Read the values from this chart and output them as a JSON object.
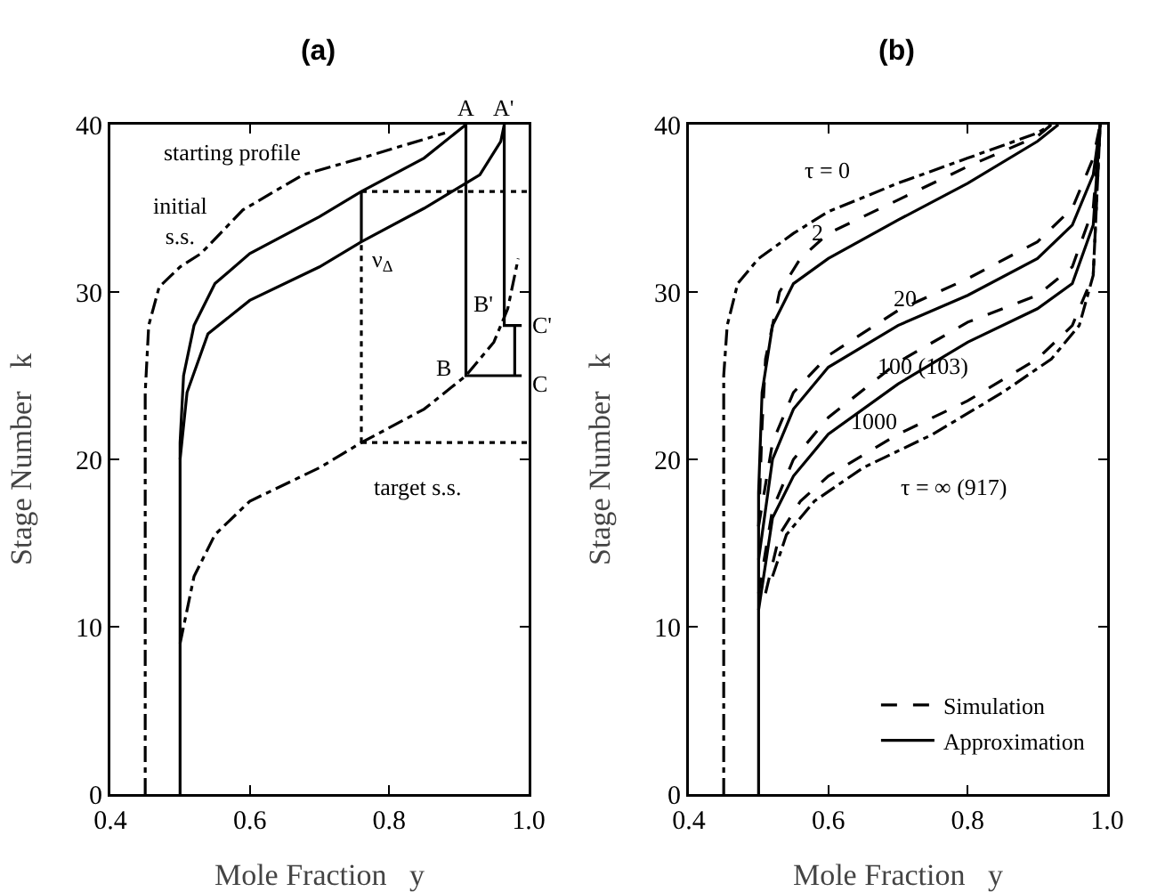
{
  "chart_data": [
    {
      "type": "line",
      "title": "(a)",
      "xlabel": "Mole Fraction   y",
      "ylabel": "Stage Number   k",
      "xlim": [
        0.4,
        1.0
      ],
      "ylim": [
        0,
        40
      ],
      "xticks": [
        0.4,
        0.6,
        0.8,
        {
          "value": 1.0,
          "label": "1.0"
        }
      ],
      "yticks": [
        0,
        10,
        20,
        30,
        40
      ],
      "grid": false,
      "legend": false,
      "series": [
        {
          "color": "#000000",
          "line_style": "dashdot",
          "x": [
            0.45,
            0.45,
            0.455,
            0.47,
            0.5,
            0.53,
            0.59,
            0.676,
            0.76,
            0.88
          ],
          "values": [
            0,
            24,
            28,
            30.3,
            31.5,
            32.3,
            34.9,
            37,
            38,
            39.5
          ]
        },
        {
          "color": "#000000",
          "line_style": "solid",
          "x": [
            0.5,
            0.5,
            0.505,
            0.52,
            0.55,
            0.6,
            0.7,
            0.76,
            0.85,
            0.91
          ],
          "values": [
            0,
            21,
            25,
            28,
            30.5,
            32.3,
            34.5,
            36,
            38,
            40
          ]
        },
        {
          "color": "#000000",
          "line_style": "solid",
          "x": [
            0.5,
            0.51,
            0.54,
            0.6,
            0.7,
            0.76,
            0.85,
            0.93,
            0.96,
            0.965
          ],
          "values": [
            20,
            24,
            27.5,
            29.5,
            31.5,
            33,
            35,
            37,
            39,
            40
          ]
        },
        {
          "color": "#000000",
          "line_style": "dashdot",
          "x": [
            0.5,
            0.52,
            0.55,
            0.6,
            0.7,
            0.76,
            0.85,
            0.91,
            0.95,
            0.97,
            0.985
          ],
          "values": [
            9,
            13,
            15.5,
            17.5,
            19.5,
            21,
            23,
            25,
            27,
            29,
            32
          ]
        },
        {
          "color": "#000000",
          "line_style": "dotted",
          "x": [
            0.76,
            1.0
          ],
          "values": [
            36,
            36
          ]
        },
        {
          "color": "#000000",
          "line_style": "dotted",
          "x": [
            0.76,
            1.0
          ],
          "values": [
            21,
            21
          ]
        },
        {
          "color": "#000000",
          "line_style": "dotted",
          "x": [
            0.76,
            0.76
          ],
          "values": [
            21,
            33
          ]
        },
        {
          "color": "#000000",
          "line_style": "solid",
          "x": [
            0.76,
            0.76
          ],
          "values": [
            36,
            33
          ]
        },
        {
          "color": "#000000",
          "line_style": "solid",
          "x": [
            0.91,
            0.91,
            0.99
          ],
          "values": [
            40,
            25,
            25
          ]
        },
        {
          "color": "#000000",
          "line_style": "solid",
          "x": [
            0.965,
            0.965,
            0.99
          ],
          "values": [
            40,
            28,
            28
          ]
        },
        {
          "color": "#000000",
          "line_style": "solid",
          "x": [
            0.98,
            0.98
          ],
          "values": [
            25,
            28
          ]
        }
      ],
      "annotations": [
        "starting profile",
        "initial\ns.s.",
        "target s.s.",
        "ν$_{Δ}$",
        "A",
        "A'",
        "B",
        "B'",
        "C",
        "C'"
      ]
    },
    {
      "type": "line",
      "title": "(b)",
      "xlabel": "Mole Fraction   y",
      "ylabel": "Stage Number   k",
      "xlim": [
        0.4,
        1.0
      ],
      "ylim": [
        0,
        40
      ],
      "xticks": [
        0.4,
        0.6,
        0.8,
        {
          "value": 1.0,
          "label": "1.0"
        }
      ],
      "yticks": [
        0,
        10,
        20,
        30,
        40
      ],
      "grid": false,
      "legend": "bottom right",
      "series": [
        {
          "color": "#000000",
          "line_style": "dashdot",
          "x": [
            0.45,
            0.45,
            0.455,
            0.47,
            0.5,
            0.55,
            0.6,
            0.7,
            0.8,
            0.9,
            0.92
          ],
          "values": [
            0,
            25,
            28,
            30.5,
            32,
            33.5,
            34.8,
            36.5,
            38,
            39.5,
            40
          ]
        },
        {
          "name": "Simulation",
          "color": "#000000",
          "line_style": "dashed",
          "x": [
            0.5,
            0.505,
            0.51,
            0.53,
            0.56,
            0.6,
            0.7,
            0.8,
            0.9,
            0.92
          ],
          "values": [
            16,
            22,
            26,
            30,
            32,
            33.5,
            35.5,
            37.5,
            39.3,
            40
          ]
        },
        {
          "name": "Approximation",
          "color": "#000000",
          "line_style": "solid",
          "x": [
            0.5,
            0.5,
            0.505,
            0.52,
            0.55,
            0.6,
            0.7,
            0.8,
            0.9,
            0.93
          ],
          "values": [
            0,
            18,
            24,
            28,
            30.5,
            32,
            34.3,
            36.5,
            39,
            40
          ]
        },
        {
          "color": "#000000",
          "line_style": "dashed",
          "x": [
            0.5,
            0.52,
            0.55,
            0.6,
            0.7,
            0.8,
            0.9,
            0.95,
            0.98,
            0.99
          ],
          "values": [
            16,
            21,
            24,
            26.2,
            28.9,
            30.8,
            33,
            35,
            38,
            40
          ]
        },
        {
          "color": "#000000",
          "line_style": "solid",
          "x": [
            0.5,
            0.52,
            0.55,
            0.6,
            0.7,
            0.8,
            0.9,
            0.95,
            0.98,
            0.99
          ],
          "values": [
            14,
            20,
            23,
            25.5,
            28,
            29.8,
            32,
            34,
            37,
            40
          ]
        },
        {
          "color": "#000000",
          "line_style": "dashed",
          "x": [
            0.5,
            0.52,
            0.55,
            0.6,
            0.7,
            0.8,
            0.9,
            0.95,
            0.98,
            0.99
          ],
          "values": [
            12,
            17,
            20,
            22.5,
            25.8,
            28.2,
            29.8,
            31.5,
            35,
            40
          ]
        },
        {
          "color": "#000000",
          "line_style": "solid",
          "x": [
            0.5,
            0.52,
            0.55,
            0.6,
            0.7,
            0.8,
            0.9,
            0.95,
            0.98,
            0.99
          ],
          "values": [
            11,
            16.5,
            19,
            21.5,
            24.5,
            27,
            29,
            30.5,
            34,
            40
          ]
        },
        {
          "color": "#000000",
          "line_style": "dashed",
          "x": [
            0.51,
            0.53,
            0.56,
            0.6,
            0.7,
            0.8,
            0.9,
            0.95,
            0.98,
            0.99
          ],
          "values": [
            12,
            15.5,
            17.5,
            19,
            21.5,
            23.5,
            26,
            28,
            31,
            40
          ]
        },
        {
          "color": "#000000",
          "line_style": "dashdot",
          "x": [
            0.52,
            0.54,
            0.58,
            0.65,
            0.75,
            0.85,
            0.92,
            0.96,
            0.98,
            0.99
          ],
          "values": [
            13,
            15.5,
            17.5,
            19.5,
            21.5,
            24,
            26,
            28,
            31,
            40
          ]
        }
      ],
      "annotations": [
        "τ = 0",
        "2",
        "20",
        "100 (103)",
        "1000",
        "τ = ∞ (917)"
      ]
    }
  ]
}
